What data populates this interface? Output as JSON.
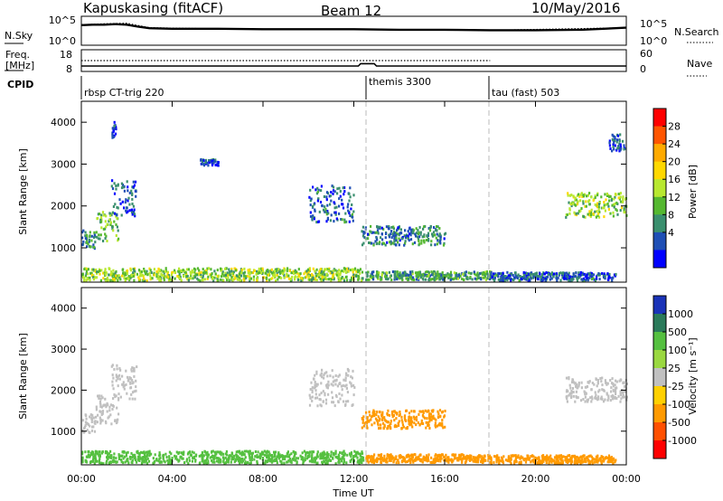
{
  "header": {
    "station": "Kapuskasing (fitACF)",
    "beam": "Beam 12",
    "date": "10/May/2016"
  },
  "noise_panel": {
    "left_label": "N.Sky",
    "right_label": "N.Search",
    "left_ticks": [
      "10^5",
      "10^0"
    ],
    "right_ticks": [
      "10^5",
      "10^0"
    ]
  },
  "freq_panel": {
    "left_label_1": "Freq.",
    "left_label_2": "[MHz]",
    "right_label": "Nave",
    "left_ticks": [
      "18",
      "8"
    ],
    "right_ticks": [
      "60",
      "0"
    ]
  },
  "cpid_panel": {
    "label": "CPID",
    "segments": [
      {
        "name": "rbsp CT-trig 220",
        "start_hour": 0
      },
      {
        "name": "themis 3300",
        "start_hour": 12.5
      },
      {
        "name": "tau (fast) 503",
        "start_hour": 18
      }
    ]
  },
  "time_axis": {
    "label": "Time UT",
    "ticks": [
      "00:00",
      "04:00",
      "08:00",
      "12:00",
      "16:00",
      "20:00",
      "00:00"
    ]
  },
  "power_colorbar": {
    "label": "Power [dB]",
    "ticks": [
      "28",
      "24",
      "20",
      "16",
      "12",
      "8",
      "4"
    ],
    "colors": [
      "#ff0000",
      "#ff5500",
      "#ffaa00",
      "#ffd800",
      "#b8e830",
      "#55b830",
      "#3a8f6e",
      "#1f4fb5",
      "#0000ff"
    ]
  },
  "velocity_colorbar": {
    "label": "Velocity [m s⁻¹]",
    "ticks": [
      "1000",
      "500",
      "100",
      "25",
      "-25",
      "-100",
      "-500",
      "-1000"
    ],
    "colors": [
      "#1a33b8",
      "#2a7a5a",
      "#55c040",
      "#9ad840",
      "#c0c0c0",
      "#ffd000",
      "#ff9a00",
      "#ff5000",
      "#ff0000"
    ]
  },
  "chart_data": [
    {
      "type": "line",
      "title": "Kapuskasing (fitACF)",
      "subtitle": "Beam 12",
      "series": [
        {
          "name": "N.Sky",
          "x_hours": [
            0,
            0.5,
            1,
            1.5,
            2,
            2.5,
            3,
            4,
            6,
            8,
            10,
            12,
            14,
            16,
            18,
            20,
            22,
            23,
            24
          ],
          "y_log10": [
            3.6,
            3.7,
            3.7,
            3.8,
            3.7,
            3.3,
            3.0,
            2.9,
            2.9,
            2.8,
            2.8,
            2.8,
            2.7,
            2.7,
            2.6,
            2.6,
            2.7,
            2.9,
            3.1
          ]
        },
        {
          "name": "N.Search",
          "x_hours": [
            0,
            1,
            2,
            3,
            6,
            12,
            18,
            24
          ],
          "y_log10": [
            3.7,
            3.9,
            4.0,
            3.1,
            2.9,
            2.8,
            2.6,
            3.1
          ]
        }
      ],
      "ylim_log10": [
        0,
        5
      ]
    },
    {
      "type": "line",
      "series": [
        {
          "name": "Freq.",
          "x_hours": [
            0,
            12.2,
            12.3,
            12.9,
            13.0,
            18,
            24
          ],
          "values": [
            10.5,
            10.5,
            11.8,
            11.8,
            10.5,
            10.5,
            10.5
          ]
        },
        {
          "name": "Nave",
          "x_hours": [
            0,
            18
          ],
          "values": [
            33,
            33
          ]
        }
      ],
      "ylim": [
        8,
        18
      ],
      "ylim_right": [
        0,
        60
      ]
    },
    {
      "type": "heatmap",
      "xlabel": "Time UT",
      "ylabel": "Slant Range [km]",
      "xlim_hours": [
        0,
        24
      ],
      "ylim_km": [
        180,
        4500
      ],
      "yticks": [
        1000,
        2000,
        3000,
        4000
      ],
      "colorbar": "Power [dB]",
      "regions": [
        {
          "t0": 0.0,
          "t1": 0.6,
          "r0": 950,
          "r1": 1400,
          "value": 8
        },
        {
          "t0": 0.6,
          "t1": 1.6,
          "r0": 1150,
          "r1": 1850,
          "value": 12
        },
        {
          "t0": 1.3,
          "t1": 2.4,
          "r0": 1750,
          "r1": 2600,
          "value": 6
        },
        {
          "t0": 1.3,
          "t1": 1.5,
          "r0": 3600,
          "r1": 4000,
          "value": 5
        },
        {
          "t0": 5.2,
          "t1": 6.0,
          "r0": 2950,
          "r1": 3100,
          "value": 5
        },
        {
          "t0": 0.0,
          "t1": 12.4,
          "r0": 200,
          "r1": 500,
          "value": 14
        },
        {
          "t0": 10.0,
          "t1": 12.0,
          "r0": 1600,
          "r1": 2500,
          "value": 6
        },
        {
          "t0": 12.3,
          "t1": 16.0,
          "r0": 1050,
          "r1": 1500,
          "value": 8
        },
        {
          "t0": 12.5,
          "t1": 18.0,
          "r0": 220,
          "r1": 420,
          "value": 10
        },
        {
          "t0": 21.3,
          "t1": 24.0,
          "r0": 1700,
          "r1": 2300,
          "value": 14
        },
        {
          "t0": 23.2,
          "t1": 23.9,
          "r0": 3300,
          "r1": 3700,
          "value": 5
        },
        {
          "t0": 18.0,
          "t1": 23.5,
          "r0": 200,
          "r1": 400,
          "value": 6
        }
      ]
    },
    {
      "type": "heatmap",
      "xlabel": "Time UT",
      "ylabel": "Slant Range [km]",
      "xlim_hours": [
        0,
        24
      ],
      "ylim_km": [
        180,
        4500
      ],
      "yticks": [
        1000,
        2000,
        3000,
        4000
      ],
      "colorbar": "Velocity [m s⁻¹]",
      "regions": [
        {
          "t0": 0.0,
          "t1": 0.6,
          "r0": 950,
          "r1": 1400,
          "value": 0
        },
        {
          "t0": 0.6,
          "t1": 1.6,
          "r0": 1150,
          "r1": 1850,
          "value": 0
        },
        {
          "t0": 1.3,
          "t1": 2.4,
          "r0": 1750,
          "r1": 2600,
          "value": 0
        },
        {
          "t0": 0.0,
          "t1": 12.4,
          "r0": 200,
          "r1": 500,
          "value": 60
        },
        {
          "t0": 10.0,
          "t1": 12.0,
          "r0": 1600,
          "r1": 2500,
          "value": 0
        },
        {
          "t0": 12.3,
          "t1": 16.0,
          "r0": 1050,
          "r1": 1500,
          "value": -80
        },
        {
          "t0": 12.5,
          "t1": 18.0,
          "r0": 220,
          "r1": 420,
          "value": -50
        },
        {
          "t0": 21.3,
          "t1": 24.0,
          "r0": 1700,
          "r1": 2300,
          "value": 0
        },
        {
          "t0": 18.0,
          "t1": 23.5,
          "r0": 200,
          "r1": 400,
          "value": -60
        }
      ]
    }
  ]
}
